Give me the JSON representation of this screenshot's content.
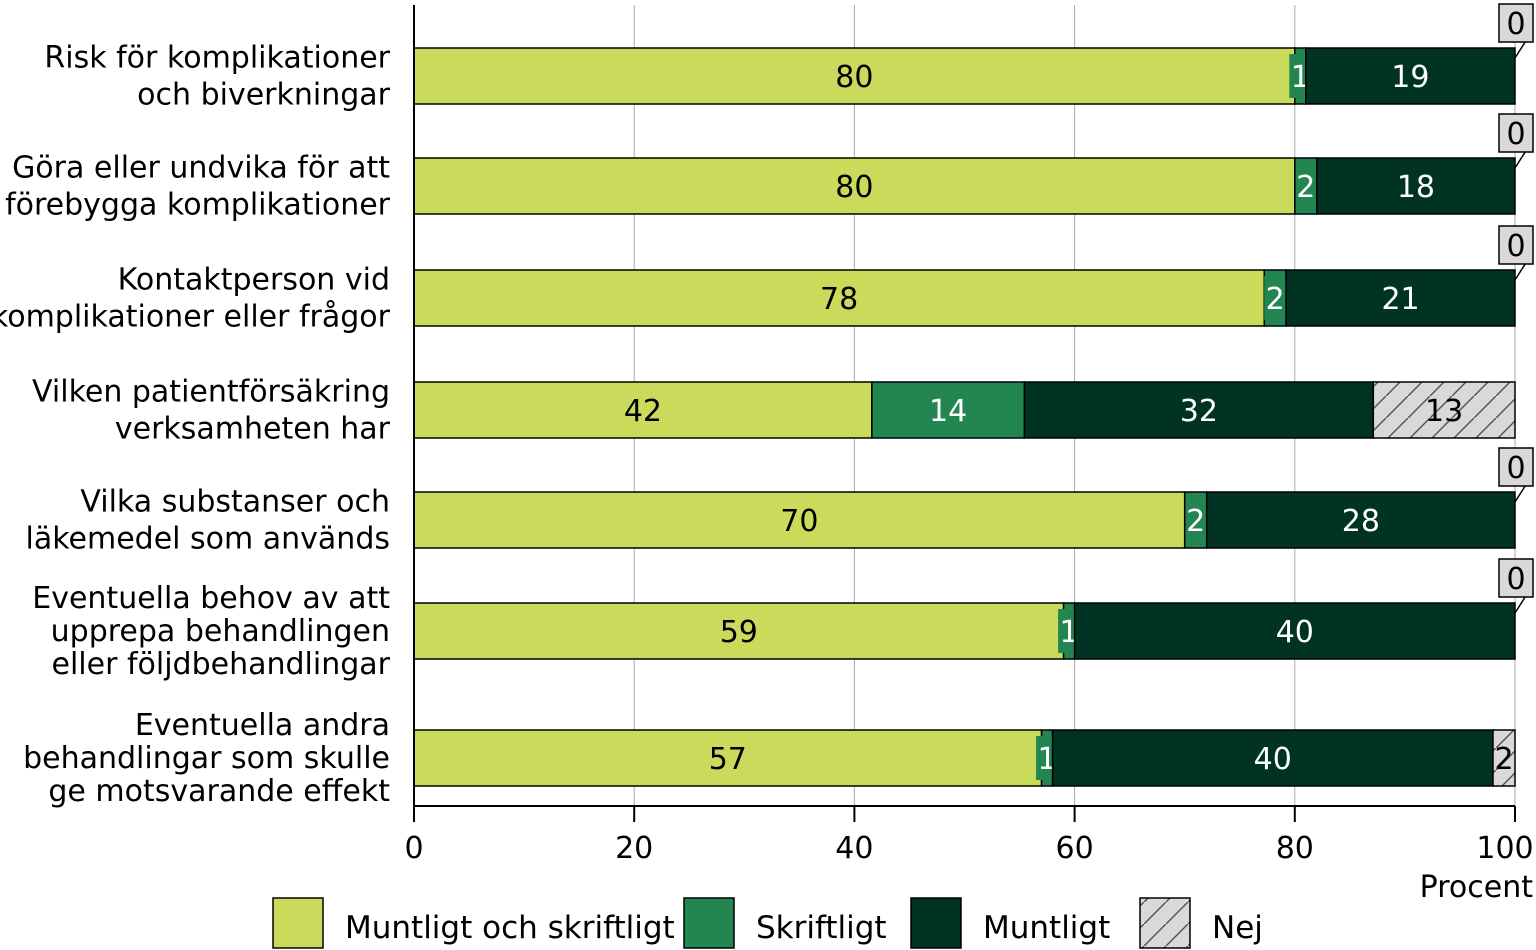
{
  "chart_data": {
    "type": "bar",
    "orientation": "horizontal",
    "stacked": true,
    "categories": [
      [
        "Risk för komplikationer",
        "och biverkningar"
      ],
      [
        "Göra eller undvika för att",
        "förebygga komplikationer"
      ],
      [
        "Kontaktperson vid",
        "komplikationer eller frågor"
      ],
      [
        "Vilken patientförsäkring",
        "verksamheten har"
      ],
      [
        "Vilka substanser och",
        "läkemedel som används"
      ],
      [
        "Eventuella behov av att",
        "upprepa behandlingen",
        "eller följdbehandlingar"
      ],
      [
        "Eventuella andra",
        "behandlingar som skulle",
        "ge motsvarande effekt"
      ]
    ],
    "series": [
      {
        "name": "Muntligt och skriftligt",
        "color": "#cadb5c",
        "values": [
          80,
          80,
          78,
          42,
          70,
          59,
          57
        ]
      },
      {
        "name": "Skriftligt",
        "color": "#238650",
        "values": [
          1,
          2,
          2,
          14,
          2,
          1,
          1
        ]
      },
      {
        "name": "Muntligt",
        "color": "#003322",
        "values": [
          19,
          18,
          21,
          32,
          28,
          40,
          40
        ]
      },
      {
        "name": "Nej",
        "color": "#d9d9d9",
        "pattern": "hatched",
        "values": [
          0,
          0,
          0,
          13,
          0,
          0,
          2
        ]
      }
    ],
    "xlim": [
      0,
      100
    ],
    "xticks": [
      "0",
      "20",
      "40",
      "60",
      "80",
      "100"
    ],
    "xlabel": "Procent",
    "grid": "vertical",
    "legend": "bottom"
  }
}
